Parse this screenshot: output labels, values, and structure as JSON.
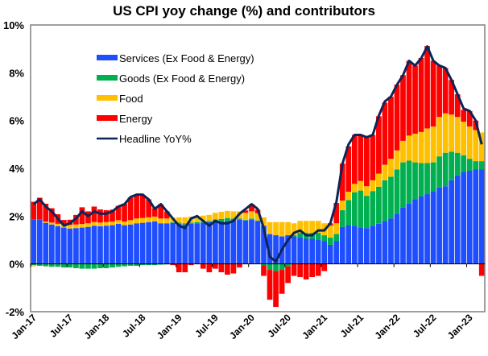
{
  "chart_data": {
    "type": "bar",
    "subtype": "stacked-bar-with-line",
    "title": "US CPI yoy change (%) and contributors",
    "xlabel": "",
    "ylabel": "",
    "ylim": [
      -2,
      10
    ],
    "yticks": [
      -2,
      0,
      2,
      4,
      6,
      8,
      10
    ],
    "ytick_labels": [
      "-2%",
      "0%",
      "2%",
      "4%",
      "6%",
      "8%",
      "10%"
    ],
    "grid": false,
    "legend_position": "top-left",
    "xtick_labels": [
      "Jan-17",
      "Jul-17",
      "Jan-18",
      "Jul-18",
      "Jan-19",
      "Jul-19",
      "Jan-20",
      "Jul-20",
      "Jan-21",
      "Jul-21",
      "Jan-22",
      "Jul-22",
      "Jan-23"
    ],
    "categories": [
      "Jan-17",
      "Feb-17",
      "Mar-17",
      "Apr-17",
      "May-17",
      "Jun-17",
      "Jul-17",
      "Aug-17",
      "Sep-17",
      "Oct-17",
      "Nov-17",
      "Dec-17",
      "Jan-18",
      "Feb-18",
      "Mar-18",
      "Apr-18",
      "May-18",
      "Jun-18",
      "Jul-18",
      "Aug-18",
      "Sep-18",
      "Oct-18",
      "Nov-18",
      "Dec-18",
      "Jan-19",
      "Feb-19",
      "Mar-19",
      "Apr-19",
      "May-19",
      "Jun-19",
      "Jul-19",
      "Aug-19",
      "Sep-19",
      "Oct-19",
      "Nov-19",
      "Dec-19",
      "Jan-20",
      "Feb-20",
      "Mar-20",
      "Apr-20",
      "May-20",
      "Jun-20",
      "Jul-20",
      "Aug-20",
      "Sep-20",
      "Oct-20",
      "Nov-20",
      "Dec-20",
      "Jan-21",
      "Feb-21",
      "Mar-21",
      "Apr-21",
      "May-21",
      "Jun-21",
      "Jul-21",
      "Aug-21",
      "Sep-21",
      "Oct-21",
      "Nov-21",
      "Dec-21",
      "Jan-22",
      "Feb-22",
      "Mar-22",
      "Apr-22",
      "May-22",
      "Jun-22",
      "Jul-22",
      "Aug-22",
      "Sep-22",
      "Oct-22",
      "Nov-22",
      "Dec-22",
      "Jan-23",
      "Feb-23",
      "Mar-23"
    ],
    "series": [
      {
        "name": "Services (Ex Food & Energy)",
        "type": "bar",
        "color": "#1f4eff",
        "values": [
          1.85,
          1.87,
          1.72,
          1.65,
          1.58,
          1.52,
          1.48,
          1.5,
          1.52,
          1.55,
          1.6,
          1.58,
          1.6,
          1.62,
          1.68,
          1.62,
          1.65,
          1.7,
          1.72,
          1.75,
          1.78,
          1.7,
          1.7,
          1.72,
          1.68,
          1.65,
          1.68,
          1.7,
          1.72,
          1.75,
          1.78,
          1.78,
          1.8,
          1.82,
          1.85,
          1.82,
          1.85,
          1.8,
          1.6,
          1.25,
          1.2,
          1.15,
          1.2,
          1.15,
          1.1,
          1.05,
          1.05,
          1.0,
          0.95,
          0.8,
          0.95,
          1.55,
          1.62,
          1.6,
          1.52,
          1.5,
          1.6,
          1.68,
          1.8,
          1.9,
          2.1,
          2.35,
          2.52,
          2.7,
          2.82,
          2.92,
          3.05,
          3.2,
          3.25,
          3.5,
          3.7,
          3.85,
          3.9,
          3.95,
          3.95
        ]
      },
      {
        "name": "Goods (Ex Food & Energy)",
        "type": "bar",
        "color": "#00b050",
        "values": [
          -0.05,
          -0.08,
          -0.1,
          -0.12,
          -0.12,
          -0.15,
          -0.15,
          -0.18,
          -0.2,
          -0.2,
          -0.2,
          -0.18,
          -0.18,
          -0.15,
          -0.12,
          -0.1,
          -0.08,
          -0.08,
          -0.05,
          -0.05,
          -0.05,
          -0.03,
          -0.02,
          0.02,
          0.05,
          0.05,
          0.05,
          0.05,
          0.05,
          0.05,
          0.08,
          0.1,
          0.12,
          0.08,
          0.05,
          0.02,
          0.05,
          0.02,
          -0.05,
          -0.25,
          -0.3,
          -0.25,
          -0.1,
          0.05,
          0.2,
          0.25,
          0.25,
          0.3,
          0.25,
          0.3,
          0.3,
          0.7,
          1.05,
          1.4,
          1.55,
          1.35,
          1.45,
          1.55,
          1.7,
          1.75,
          1.85,
          1.9,
          1.8,
          1.55,
          1.4,
          1.3,
          1.2,
          1.3,
          1.4,
          1.2,
          0.95,
          0.7,
          0.5,
          0.35,
          0.35
        ]
      },
      {
        "name": "Food",
        "type": "bar",
        "color": "#ffc000",
        "values": [
          -0.05,
          0.0,
          0.05,
          0.08,
          0.1,
          0.12,
          0.15,
          0.15,
          0.15,
          0.15,
          0.15,
          0.15,
          0.15,
          0.15,
          0.15,
          0.15,
          0.18,
          0.2,
          0.2,
          0.2,
          0.2,
          0.2,
          0.2,
          0.2,
          0.22,
          0.25,
          0.25,
          0.25,
          0.25,
          0.25,
          0.28,
          0.3,
          0.3,
          0.3,
          0.3,
          0.3,
          0.3,
          0.3,
          0.35,
          0.5,
          0.55,
          0.6,
          0.55,
          0.5,
          0.5,
          0.5,
          0.5,
          0.5,
          0.5,
          0.5,
          0.45,
          0.4,
          0.35,
          0.35,
          0.4,
          0.4,
          0.45,
          0.55,
          0.65,
          0.75,
          0.8,
          0.9,
          1.05,
          1.2,
          1.3,
          1.45,
          1.5,
          1.65,
          1.65,
          1.55,
          1.5,
          1.4,
          1.35,
          1.3,
          1.2
        ]
      },
      {
        "name": "Energy",
        "type": "bar",
        "color": "#ff0000",
        "values": [
          0.75,
          0.9,
          0.75,
          0.6,
          0.4,
          0.2,
          0.22,
          0.4,
          0.7,
          0.5,
          0.65,
          0.55,
          0.5,
          0.5,
          0.6,
          0.75,
          0.95,
          1.0,
          0.95,
          0.75,
          0.35,
          0.6,
          0.3,
          -0.05,
          -0.35,
          -0.35,
          -0.05,
          0.0,
          -0.2,
          -0.35,
          -0.2,
          -0.35,
          -0.45,
          -0.4,
          -0.15,
          0.1,
          0.3,
          0.15,
          -0.45,
          -1.25,
          -1.5,
          -1.0,
          -0.7,
          -0.5,
          -0.55,
          -0.65,
          -0.55,
          -0.5,
          -0.3,
          0.1,
          0.85,
          1.55,
          1.9,
          2.05,
          1.95,
          2.05,
          1.9,
          2.4,
          2.6,
          2.6,
          2.75,
          2.75,
          3.13,
          2.85,
          3.1,
          3.45,
          2.75,
          2.15,
          1.9,
          1.45,
          0.95,
          0.5,
          0.65,
          0.4,
          -0.5
        ]
      },
      {
        "name": "Headline YoY%",
        "type": "line",
        "color": "#0d2456",
        "values": [
          2.5,
          2.7,
          2.4,
          2.2,
          1.9,
          1.6,
          1.7,
          1.9,
          2.2,
          2.0,
          2.2,
          2.1,
          2.1,
          2.2,
          2.4,
          2.5,
          2.8,
          2.9,
          2.9,
          2.7,
          2.3,
          2.5,
          2.2,
          1.9,
          1.6,
          1.5,
          1.9,
          2.0,
          1.8,
          1.6,
          1.8,
          1.7,
          1.7,
          1.8,
          2.1,
          2.3,
          2.5,
          2.3,
          1.5,
          0.3,
          0.1,
          0.6,
          1.0,
          1.3,
          1.4,
          1.2,
          1.2,
          1.4,
          1.4,
          1.7,
          2.6,
          4.2,
          5.0,
          5.4,
          5.4,
          5.3,
          5.4,
          6.2,
          6.8,
          7.0,
          7.5,
          7.9,
          8.5,
          8.3,
          8.6,
          9.1,
          8.5,
          8.3,
          8.2,
          7.7,
          7.1,
          6.5,
          6.4,
          6.0,
          5.0
        ]
      }
    ]
  }
}
